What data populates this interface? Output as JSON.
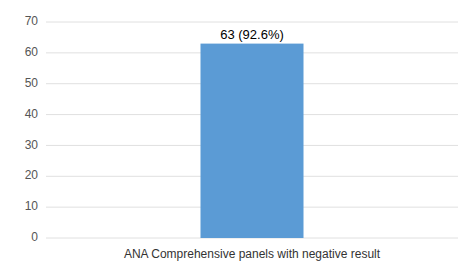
{
  "chart_data": {
    "type": "bar",
    "categories": [
      "ANA Comprehensive panels with negative result"
    ],
    "values": [
      63
    ],
    "value_labels": [
      "63 (92.6%)"
    ],
    "data_labels": true,
    "color": "#5b9bd5",
    "ylim": [
      0,
      70
    ],
    "yticks": [
      0,
      10,
      20,
      30,
      40,
      50,
      60,
      70
    ],
    "grid": true
  }
}
